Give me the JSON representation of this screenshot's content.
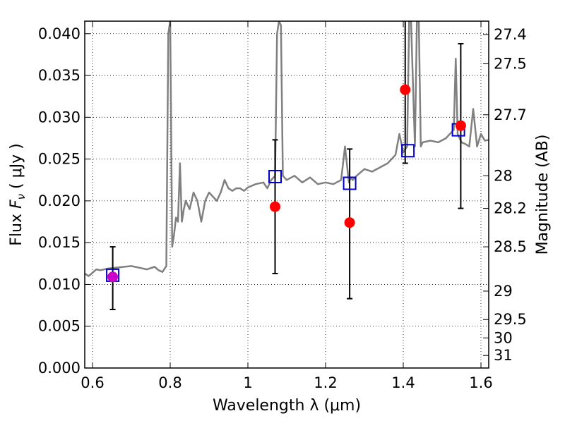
{
  "chart_data": {
    "type": "scatter",
    "xlabel": "Wavelength  λ (μm)",
    "ylabel": "Flux  F_ν  ( μJy )",
    "ylabel_parts": {
      "prefix": "Flux  ",
      "symbol": "F",
      "subscript": "ν",
      "suffix": "  ( μJy )"
    },
    "y2label": "Magnitude (AB)",
    "xlim": [
      0.58,
      1.62
    ],
    "ylim": [
      0.0,
      0.0415
    ],
    "grid": true,
    "x_ticks": [
      0.6,
      0.8,
      1.0,
      1.2,
      1.4,
      1.6
    ],
    "x_tick_labels": [
      "0.6",
      "0.8",
      "1",
      "1.2",
      "1.4",
      "1.6"
    ],
    "y_ticks": [
      0.0,
      0.005,
      0.01,
      0.015,
      0.02,
      0.025,
      0.03,
      0.035,
      0.04
    ],
    "y_tick_labels": [
      "0.000",
      "0.005",
      "0.010",
      "0.015",
      "0.020",
      "0.025",
      "0.030",
      "0.035",
      "0.040"
    ],
    "y2_ticks": [
      {
        "label": "27.4",
        "flux": 0.0399
      },
      {
        "label": "27.5",
        "flux": 0.0364
      },
      {
        "label": "27.7",
        "flux": 0.0303
      },
      {
        "label": "28",
        "flux": 0.023
      },
      {
        "label": "28.2",
        "flux": 0.0191
      },
      {
        "label": "28.5",
        "flux": 0.0145
      },
      {
        "label": "29",
        "flux": 0.0092
      },
      {
        "label": "29.5",
        "flux": 0.0058
      },
      {
        "label": "30",
        "flux": 0.0036
      },
      {
        "label": "31",
        "flux": 0.0015
      }
    ],
    "series": [
      {
        "kind": "spectrum",
        "color": "#808080",
        "x": [
          0.58,
          0.59,
          0.6,
          0.61,
          0.62,
          0.64,
          0.66,
          0.68,
          0.7,
          0.72,
          0.74,
          0.76,
          0.77,
          0.78,
          0.79,
          0.795,
          0.8,
          0.805,
          0.81,
          0.815,
          0.82,
          0.825,
          0.83,
          0.835,
          0.84,
          0.85,
          0.86,
          0.87,
          0.88,
          0.89,
          0.9,
          0.91,
          0.92,
          0.93,
          0.94,
          0.95,
          0.96,
          0.97,
          0.98,
          0.99,
          1.0,
          1.02,
          1.04,
          1.05,
          1.06,
          1.07,
          1.075,
          1.08,
          1.085,
          1.09,
          1.1,
          1.12,
          1.14,
          1.16,
          1.18,
          1.2,
          1.22,
          1.24,
          1.25,
          1.26,
          1.265,
          1.27,
          1.28,
          1.3,
          1.32,
          1.34,
          1.36,
          1.38,
          1.39,
          1.4,
          1.41,
          1.415,
          1.42,
          1.43,
          1.435,
          1.44,
          1.445,
          1.45,
          1.47,
          1.49,
          1.51,
          1.53,
          1.535,
          1.54,
          1.545,
          1.55,
          1.56,
          1.57,
          1.58,
          1.59,
          1.6,
          1.61,
          1.62
        ],
        "y": [
          0.0113,
          0.011,
          0.0114,
          0.0118,
          0.0117,
          0.0119,
          0.012,
          0.0121,
          0.0122,
          0.012,
          0.0118,
          0.0121,
          0.0117,
          0.0115,
          0.0122,
          0.04,
          0.0415,
          0.0145,
          0.016,
          0.018,
          0.0175,
          0.0245,
          0.0175,
          0.019,
          0.02,
          0.019,
          0.021,
          0.02,
          0.0175,
          0.02,
          0.021,
          0.0205,
          0.02,
          0.021,
          0.0225,
          0.0215,
          0.0212,
          0.0215,
          0.0215,
          0.0212,
          0.0216,
          0.022,
          0.0222,
          0.0215,
          0.0225,
          0.023,
          0.04,
          0.0415,
          0.041,
          0.023,
          0.0225,
          0.023,
          0.0222,
          0.0228,
          0.022,
          0.0222,
          0.022,
          0.0225,
          0.0265,
          0.0222,
          0.0228,
          0.0225,
          0.023,
          0.0238,
          0.0235,
          0.024,
          0.0245,
          0.0255,
          0.028,
          0.0258,
          0.0265,
          0.0415,
          0.0415,
          0.0265,
          0.0415,
          0.0415,
          0.0265,
          0.027,
          0.0272,
          0.027,
          0.0275,
          0.0285,
          0.037,
          0.028,
          0.0275,
          0.027,
          0.0268,
          0.0265,
          0.031,
          0.0265,
          0.028,
          0.0272,
          0.0273
        ]
      },
      {
        "kind": "model-photometry",
        "marker": "open-square",
        "color": "#0000cc",
        "x": [
          0.652,
          1.07,
          1.262,
          1.412,
          1.542
        ],
        "y": [
          0.0111,
          0.0229,
          0.0221,
          0.026,
          0.0285
        ]
      },
      {
        "kind": "observed-photometry",
        "marker": "filled-circle",
        "color": "#ff0000",
        "x": [
          0.652,
          1.07,
          1.262,
          1.405,
          1.548
        ],
        "y": [
          0.0109,
          0.0193,
          0.0174,
          0.0333,
          0.029
        ],
        "yerr_low": [
          0.0039,
          0.008,
          0.0091,
          0.0088,
          0.0099
        ],
        "yerr_high": [
          0.0036,
          0.008,
          0.0088,
          0.0088,
          0.0098
        ]
      }
    ]
  },
  "colors": {
    "spectrum": "#808080",
    "model_square": "#0000cc",
    "observed_point": "#ff0000",
    "first_point_overlap": "#cc00cc",
    "errorbar": "#000000"
  }
}
